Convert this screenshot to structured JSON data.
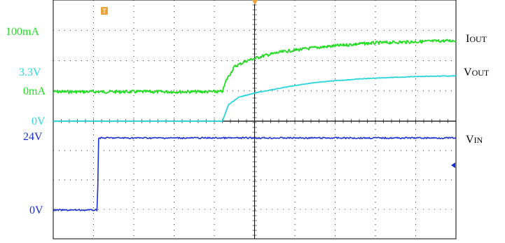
{
  "chart_data": {
    "type": "line",
    "subplots": [
      {
        "id": "top",
        "series": [
          {
            "name": "IOUT",
            "name_main": "I",
            "name_sub": "OUT",
            "color": "#22dd22",
            "level_labels": [
              {
                "text": "100mA",
                "value": 100
              },
              {
                "text": "0mA",
                "value": 0
              }
            ],
            "x": [
              0,
              4.2,
              4.3,
              4.5,
              4.8,
              5.2,
              5.6,
              6,
              6.5,
              7,
              7.5,
              8,
              9,
              10
            ],
            "y": [
              0,
              0,
              20,
              42,
              52,
              60,
              66,
              70,
              74,
              77,
              80,
              82,
              84,
              86
            ]
          },
          {
            "name": "VOUT",
            "name_main": "V",
            "name_sub": "OUT",
            "color": "#2ad4dc",
            "level_labels": [
              {
                "text": "3.3V",
                "value": 3.3
              },
              {
                "text": "0V",
                "value": 0
              }
            ],
            "x": [
              0,
              4.2,
              4.35,
              4.6,
              5,
              5.5,
              6,
              6.5,
              7,
              7.5,
              8,
              9,
              10
            ],
            "y": [
              0,
              0,
              1.1,
              1.6,
              1.9,
              2.15,
              2.4,
              2.6,
              2.72,
              2.82,
              2.9,
              3.0,
              3.05
            ]
          }
        ]
      },
      {
        "id": "bottom",
        "series": [
          {
            "name": "VIN",
            "name_main": "V",
            "name_sub": "IN",
            "color": "#1a2fd0",
            "level_labels": [
              {
                "text": "24V",
                "value": 24
              },
              {
                "text": "0V",
                "value": 0
              }
            ],
            "x": [
              0,
              1.1,
              1.12,
              10
            ],
            "y": [
              0,
              0,
              24,
              24
            ]
          }
        ]
      }
    ],
    "x_range": [
      0,
      10
    ],
    "grid": true,
    "trigger_marker_color": "#e8a33a",
    "grid_color": "#000000"
  }
}
